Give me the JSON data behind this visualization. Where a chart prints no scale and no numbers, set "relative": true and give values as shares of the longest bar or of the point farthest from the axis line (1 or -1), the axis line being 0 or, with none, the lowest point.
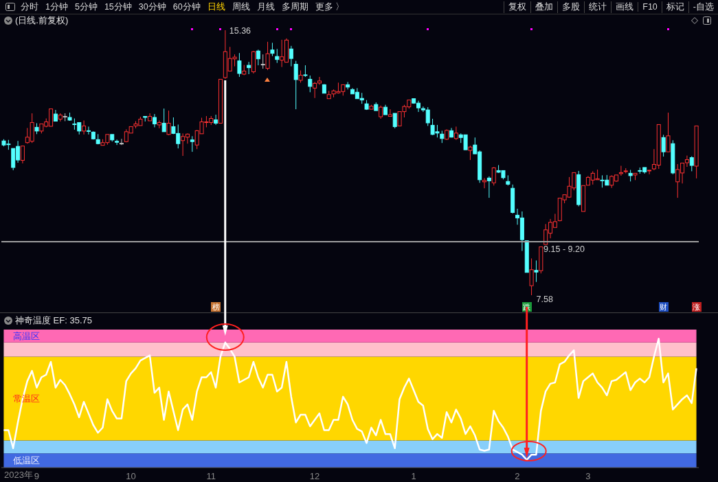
{
  "chart_data": [
    {
      "type": "other",
      "annotations": [
        "分时",
        "1分钟",
        "5分钟",
        "15分钟",
        "30分钟",
        "60分钟",
        "日线",
        "周线",
        "月线",
        "多周期",
        "更多 〉",
        "复权",
        "叠加",
        "多股",
        "统计",
        "画线",
        "F10",
        "标记",
        "-自选"
      ]
    },
    {
      "type": "candlestick",
      "title": "(日线.前复权)",
      "tick_labels": false,
      "categories": [
        null,
        null,
        null,
        null,
        null,
        null,
        null,
        "9",
        null,
        null,
        null,
        null,
        null,
        null,
        null,
        null,
        null,
        null,
        null,
        null,
        null,
        null,
        null,
        null,
        null,
        null,
        null,
        "10",
        null,
        null,
        null,
        null,
        null,
        null,
        null,
        null,
        null,
        null,
        null,
        null,
        null,
        null,
        null,
        null,
        "11",
        null,
        null,
        null,
        null,
        null,
        null,
        null,
        null,
        null,
        null,
        null,
        null,
        null,
        null,
        null,
        null,
        null,
        null,
        null,
        null,
        null,
        "12",
        null,
        null,
        null,
        null,
        null,
        null,
        null,
        null,
        null,
        null,
        null,
        null,
        null,
        null,
        null,
        null,
        null,
        null,
        null,
        null,
        "1",
        null,
        null,
        null,
        null,
        null,
        null,
        null,
        null,
        null,
        null,
        null,
        null,
        null,
        null,
        null,
        null,
        null,
        null,
        null,
        null,
        null,
        "2",
        null,
        null,
        null,
        null,
        null,
        null,
        null,
        null,
        null,
        null,
        null,
        null,
        null,
        null,
        "3",
        null,
        null,
        null,
        null,
        null,
        null,
        null,
        null,
        null,
        null,
        null,
        null,
        null,
        null,
        null,
        null,
        null,
        null,
        null,
        null,
        null,
        null,
        null
      ],
      "ohlc": [
        [
          12.11,
          12.16,
          11.95,
          11.99
        ],
        [
          12.02,
          12.14,
          11.85,
          12.0
        ],
        [
          11.89,
          11.89,
          11.25,
          11.33
        ],
        [
          11.95,
          12.11,
          11.47,
          11.55
        ],
        [
          11.54,
          11.97,
          11.45,
          11.96
        ],
        [
          12.06,
          12.49,
          12.03,
          12.22
        ],
        [
          12.1,
          12.92,
          12.05,
          12.65
        ],
        [
          12.51,
          12.63,
          12.31,
          12.4
        ],
        [
          12.4,
          12.61,
          12.33,
          12.61
        ],
        [
          12.54,
          12.77,
          12.51,
          12.67
        ],
        [
          12.54,
          13.05,
          12.53,
          13.05
        ],
        [
          12.9,
          13.02,
          12.68,
          12.69
        ],
        [
          12.75,
          12.92,
          12.68,
          12.87
        ],
        [
          12.83,
          12.92,
          12.69,
          12.83
        ],
        [
          12.8,
          12.94,
          12.7,
          12.72
        ],
        [
          12.61,
          12.77,
          12.44,
          12.59
        ],
        [
          12.65,
          12.65,
          12.3,
          12.4
        ],
        [
          12.4,
          12.71,
          12.3,
          12.55
        ],
        [
          12.41,
          12.53,
          12.3,
          12.39
        ],
        [
          12.37,
          12.39,
          12.15,
          12.17
        ],
        [
          12.15,
          12.31,
          12.01,
          12.03
        ],
        [
          11.98,
          12.16,
          11.98,
          12.06
        ],
        [
          12.06,
          12.3,
          12.0,
          12.3
        ],
        [
          12.3,
          12.3,
          12.09,
          12.14
        ],
        [
          12.1,
          12.15,
          11.99,
          12.07
        ],
        [
          12.04,
          12.17,
          11.99,
          12.04
        ],
        [
          12.09,
          12.45,
          12.07,
          12.38
        ],
        [
          12.34,
          12.53,
          12.34,
          12.53
        ],
        [
          12.55,
          12.69,
          12.48,
          12.61
        ],
        [
          12.56,
          12.82,
          12.56,
          12.75
        ],
        [
          12.83,
          12.83,
          12.68,
          12.8
        ],
        [
          12.7,
          12.92,
          12.7,
          12.83
        ],
        [
          12.8,
          12.9,
          12.51,
          12.61
        ],
        [
          12.58,
          12.71,
          12.48,
          12.65
        ],
        [
          12.63,
          13.06,
          12.38,
          12.38
        ],
        [
          12.3,
          13.0,
          12.28,
          12.63
        ],
        [
          12.53,
          12.8,
          12.31,
          12.33
        ],
        [
          12.33,
          12.59,
          11.89,
          12.03
        ],
        [
          12.12,
          12.33,
          11.67,
          12.24
        ],
        [
          12.22,
          12.33,
          12.03,
          12.31
        ],
        [
          12.14,
          12.25,
          11.79,
          12.09
        ],
        [
          11.99,
          12.43,
          11.87,
          12.41
        ],
        [
          12.32,
          12.79,
          12.32,
          12.67
        ],
        [
          12.65,
          12.84,
          12.51,
          12.67
        ],
        [
          12.65,
          12.84,
          12.58,
          12.77
        ],
        [
          12.73,
          12.88,
          12.58,
          12.63
        ],
        [
          12.63,
          13.92,
          12.63,
          13.92
        ],
        [
          13.97,
          15.36,
          13.93,
          14.73
        ],
        [
          14.16,
          14.87,
          14.16,
          14.53
        ],
        [
          14.52,
          14.65,
          14.3,
          14.57
        ],
        [
          14.46,
          14.69,
          13.99,
          14.09
        ],
        [
          14.07,
          14.34,
          14.04,
          14.16
        ],
        [
          14.33,
          14.43,
          14.07,
          14.26
        ],
        [
          14.14,
          14.75,
          14.09,
          14.73
        ],
        [
          14.75,
          14.79,
          14.33,
          14.52
        ],
        [
          14.36,
          14.65,
          14.23,
          14.36
        ],
        [
          14.24,
          15.02,
          14.19,
          14.67
        ],
        [
          14.78,
          14.99,
          14.6,
          14.68
        ],
        [
          14.59,
          14.81,
          14.4,
          14.5
        ],
        [
          14.48,
          15.08,
          14.28,
          14.58
        ],
        [
          14.42,
          15.12,
          14.42,
          15.07
        ],
        [
          14.81,
          14.9,
          14.3,
          14.53
        ],
        [
          14.36,
          14.46,
          13.04,
          13.91
        ],
        [
          13.89,
          14.18,
          13.82,
          14.04
        ],
        [
          14.05,
          14.33,
          13.99,
          14.03
        ],
        [
          13.92,
          14.03,
          13.54,
          13.71
        ],
        [
          13.66,
          13.84,
          13.37,
          13.8
        ],
        [
          13.81,
          13.99,
          13.76,
          13.87
        ],
        [
          13.76,
          13.78,
          13.51,
          13.51
        ],
        [
          13.35,
          13.58,
          13.35,
          13.47
        ],
        [
          13.49,
          13.62,
          13.39,
          13.58
        ],
        [
          13.52,
          13.82,
          13.5,
          13.56
        ],
        [
          13.56,
          13.76,
          13.44,
          13.76
        ],
        [
          13.76,
          13.84,
          13.62,
          13.69
        ],
        [
          13.62,
          13.66,
          13.49,
          13.49
        ],
        [
          13.54,
          13.66,
          13.35,
          13.35
        ],
        [
          13.36,
          13.52,
          13.2,
          13.31
        ],
        [
          13.2,
          13.31,
          13.02,
          13.04
        ],
        [
          13.04,
          13.17,
          13.04,
          13.13
        ],
        [
          13.18,
          13.24,
          13.0,
          13.0
        ],
        [
          12.82,
          13.15,
          12.76,
          13.1
        ],
        [
          13.1,
          13.17,
          12.88,
          12.88
        ],
        [
          12.83,
          13.04,
          12.83,
          12.88
        ],
        [
          12.92,
          12.92,
          12.48,
          12.53
        ],
        [
          12.55,
          12.97,
          12.55,
          12.97
        ],
        [
          12.97,
          13.17,
          12.8,
          13.12
        ],
        [
          13.11,
          13.31,
          13.06,
          13.31
        ],
        [
          13.35,
          13.35,
          13.2,
          13.22
        ],
        [
          13.22,
          13.29,
          12.96,
          13.08
        ],
        [
          13.06,
          13.12,
          12.96,
          13.02
        ],
        [
          13.02,
          13.1,
          12.55,
          12.64
        ],
        [
          12.57,
          12.76,
          12.28,
          12.3
        ],
        [
          12.38,
          12.58,
          12.21,
          12.34
        ],
        [
          12.31,
          12.41,
          12.05,
          12.18
        ],
        [
          12.16,
          12.45,
          12.14,
          12.42
        ],
        [
          12.41,
          12.49,
          12.21,
          12.22
        ],
        [
          12.18,
          12.53,
          12.14,
          12.34
        ],
        [
          12.29,
          12.33,
          12.05,
          12.21
        ],
        [
          12.29,
          12.29,
          11.85,
          11.85
        ],
        [
          11.83,
          11.97,
          11.55,
          11.93
        ],
        [
          11.99,
          12.21,
          11.73,
          11.73
        ],
        [
          11.79,
          11.83,
          10.88,
          10.97
        ],
        [
          10.91,
          11.02,
          10.72,
          10.95
        ],
        [
          11.02,
          11.07,
          10.44,
          10.94
        ],
        [
          10.88,
          11.34,
          10.8,
          11.32
        ],
        [
          11.24,
          11.4,
          11.17,
          11.19
        ],
        [
          11.24,
          11.24,
          10.98,
          11.03
        ],
        [
          10.92,
          11.1,
          10.8,
          10.84
        ],
        [
          10.72,
          10.83,
          9.98,
          10.01
        ],
        [
          9.93,
          10.12,
          9.65,
          9.85
        ],
        [
          9.85,
          10.04,
          8.88,
          9.21
        ],
        [
          9.18,
          9.18,
          8.25,
          8.25
        ],
        [
          7.86,
          8.66,
          7.58,
          8.33
        ],
        [
          8.31,
          8.6,
          7.97,
          8.26
        ],
        [
          8.3,
          9.0,
          8.22,
          9.0
        ],
        [
          9.07,
          9.67,
          9.07,
          9.5
        ],
        [
          9.4,
          9.82,
          9.25,
          9.72
        ],
        [
          9.57,
          9.97,
          9.57,
          9.74
        ],
        [
          9.77,
          10.43,
          9.75,
          10.43
        ],
        [
          10.38,
          10.53,
          10.28,
          10.53
        ],
        [
          10.46,
          11.05,
          10.44,
          10.78
        ],
        [
          10.73,
          11.18,
          10.66,
          11.18
        ],
        [
          11.12,
          11.23,
          10.19,
          10.24
        ],
        [
          10.04,
          10.8,
          10.04,
          10.8
        ],
        [
          10.81,
          11.08,
          10.81,
          11.04
        ],
        [
          10.96,
          11.22,
          10.83,
          11.16
        ],
        [
          10.97,
          11.27,
          10.97,
          11.0
        ],
        [
          10.96,
          11.1,
          10.74,
          10.94
        ],
        [
          10.96,
          11.11,
          10.81,
          10.81
        ],
        [
          10.81,
          11.1,
          10.73,
          11.07
        ],
        [
          10.93,
          11.11,
          10.91,
          11.11
        ],
        [
          11.15,
          11.38,
          11.09,
          11.18
        ],
        [
          11.21,
          11.31,
          11.16,
          11.23
        ],
        [
          11.16,
          11.26,
          10.92,
          11.09
        ],
        [
          11.11,
          11.16,
          10.96,
          11.16
        ],
        [
          11.24,
          11.33,
          11.15,
          11.23
        ],
        [
          11.33,
          11.33,
          11.15,
          11.2
        ],
        [
          11.23,
          11.26,
          11.13,
          11.25
        ],
        [
          11.29,
          11.87,
          11.25,
          11.42
        ],
        [
          11.4,
          12.59,
          11.29,
          12.59
        ],
        [
          12.21,
          12.29,
          11.65,
          11.79
        ],
        [
          11.79,
          12.94,
          11.79,
          12.26
        ],
        [
          12.03,
          12.13,
          11.13,
          11.17
        ],
        [
          10.91,
          11.43,
          10.44,
          11.27
        ],
        [
          11.17,
          11.47,
          10.86,
          11.46
        ],
        [
          11.47,
          11.68,
          11.35,
          11.56
        ],
        [
          11.62,
          11.66,
          11.22,
          11.39
        ],
        [
          11.37,
          12.55,
          11.01,
          12.55
        ]
      ],
      "ref_lines": [
        {
          "axis": "y",
          "value": 9.15,
          "label": "9.15 - 9.20",
          "color": "#a0a0a0"
        }
      ],
      "annotations": [
        "15.36",
        "7.58",
        "榜",
        "跌",
        "财",
        "涨"
      ]
    },
    {
      "type": "line",
      "title": "神奇温度 EF: 35.75",
      "relative": true,
      "categories": [
        null,
        null,
        null,
        null,
        null,
        null,
        null,
        "9",
        null,
        null,
        null,
        null,
        null,
        null,
        null,
        null,
        null,
        null,
        null,
        null,
        null,
        null,
        null,
        null,
        null,
        null,
        null,
        "10",
        null,
        null,
        null,
        null,
        null,
        null,
        null,
        null,
        null,
        null,
        null,
        null,
        null,
        null,
        null,
        null,
        "11",
        null,
        null,
        null,
        null,
        null,
        null,
        null,
        null,
        null,
        null,
        null,
        null,
        null,
        null,
        null,
        null,
        null,
        null,
        null,
        null,
        null,
        "12",
        null,
        null,
        null,
        null,
        null,
        null,
        null,
        null,
        null,
        null,
        null,
        null,
        null,
        null,
        null,
        null,
        null,
        null,
        null,
        null,
        "1",
        null,
        null,
        null,
        null,
        null,
        null,
        null,
        null,
        null,
        null,
        null,
        null,
        null,
        null,
        null,
        null,
        null,
        null,
        null,
        null,
        null,
        "2",
        null,
        null,
        null,
        null,
        null,
        null,
        null,
        null,
        null,
        null,
        null,
        null,
        null,
        null,
        "3",
        null,
        null,
        null,
        null,
        null,
        null,
        null,
        null,
        null,
        null,
        null,
        null,
        null,
        null,
        null,
        null,
        null,
        null,
        null,
        null,
        null,
        null,
        null
      ],
      "series": [
        {
          "color": "#ffffff",
          "values": [
            0.29,
            0.29,
            0.15,
            0.35,
            0.53,
            0.67,
            0.75,
            0.62,
            0.7,
            0.72,
            0.82,
            0.62,
            0.68,
            0.64,
            0.57,
            0.49,
            0.39,
            0.51,
            0.42,
            0.33,
            0.27,
            0.31,
            0.53,
            0.44,
            0.38,
            0.38,
            0.67,
            0.73,
            0.77,
            0.83,
            0.85,
            0.87,
            0.58,
            0.62,
            0.37,
            0.59,
            0.44,
            0.29,
            0.45,
            0.49,
            0.37,
            0.59,
            0.7,
            0.7,
            0.74,
            0.62,
            0.86,
            0.97,
            0.92,
            0.86,
            0.66,
            0.68,
            0.7,
            0.82,
            0.7,
            0.62,
            0.72,
            0.72,
            0.59,
            0.62,
            0.82,
            0.55,
            0.35,
            0.41,
            0.41,
            0.32,
            0.37,
            0.42,
            0.29,
            0.29,
            0.37,
            0.37,
            0.55,
            0.49,
            0.37,
            0.3,
            0.28,
            0.19,
            0.31,
            0.25,
            0.37,
            0.26,
            0.26,
            0.15,
            0.53,
            0.62,
            0.69,
            0.6,
            0.51,
            0.48,
            0.3,
            0.22,
            0.26,
            0.23,
            0.43,
            0.35,
            0.45,
            0.38,
            0.26,
            0.32,
            0.25,
            0.14,
            0.13,
            0.14,
            0.44,
            0.36,
            0.31,
            0.24,
            0.14,
            0.12,
            0.1,
            0.06,
            0.1,
            0.1,
            0.44,
            0.59,
            0.65,
            0.66,
            0.8,
            0.82,
            0.87,
            0.91,
            0.54,
            0.67,
            0.7,
            0.73,
            0.66,
            0.62,
            0.56,
            0.67,
            0.68,
            0.71,
            0.74,
            0.6,
            0.66,
            0.69,
            0.66,
            0.7,
            0.86,
            1,
            0.66,
            0.73,
            0.45,
            0.49,
            0.53,
            0.56,
            0.5,
            0.77
          ]
        }
      ],
      "bands": [
        {
          "axis": "y",
          "from": 0,
          "to": 0.11,
          "label": "低温区",
          "color": "#4169e1"
        },
        {
          "axis": "y",
          "from": 0.11,
          "to": 0.21,
          "color": "#87cefa"
        },
        {
          "axis": "y",
          "from": 0.21,
          "to": 0.86,
          "label": "常温区",
          "color": "#ffd700"
        },
        {
          "axis": "y",
          "from": 0.86,
          "to": 0.97,
          "color": "#ffc0cb"
        },
        {
          "axis": "y",
          "from": 0.97,
          "to": 1.07,
          "label": "高温区",
          "color": "#ff69b4"
        }
      ],
      "annotations": [
        "2023年"
      ]
    }
  ]
}
